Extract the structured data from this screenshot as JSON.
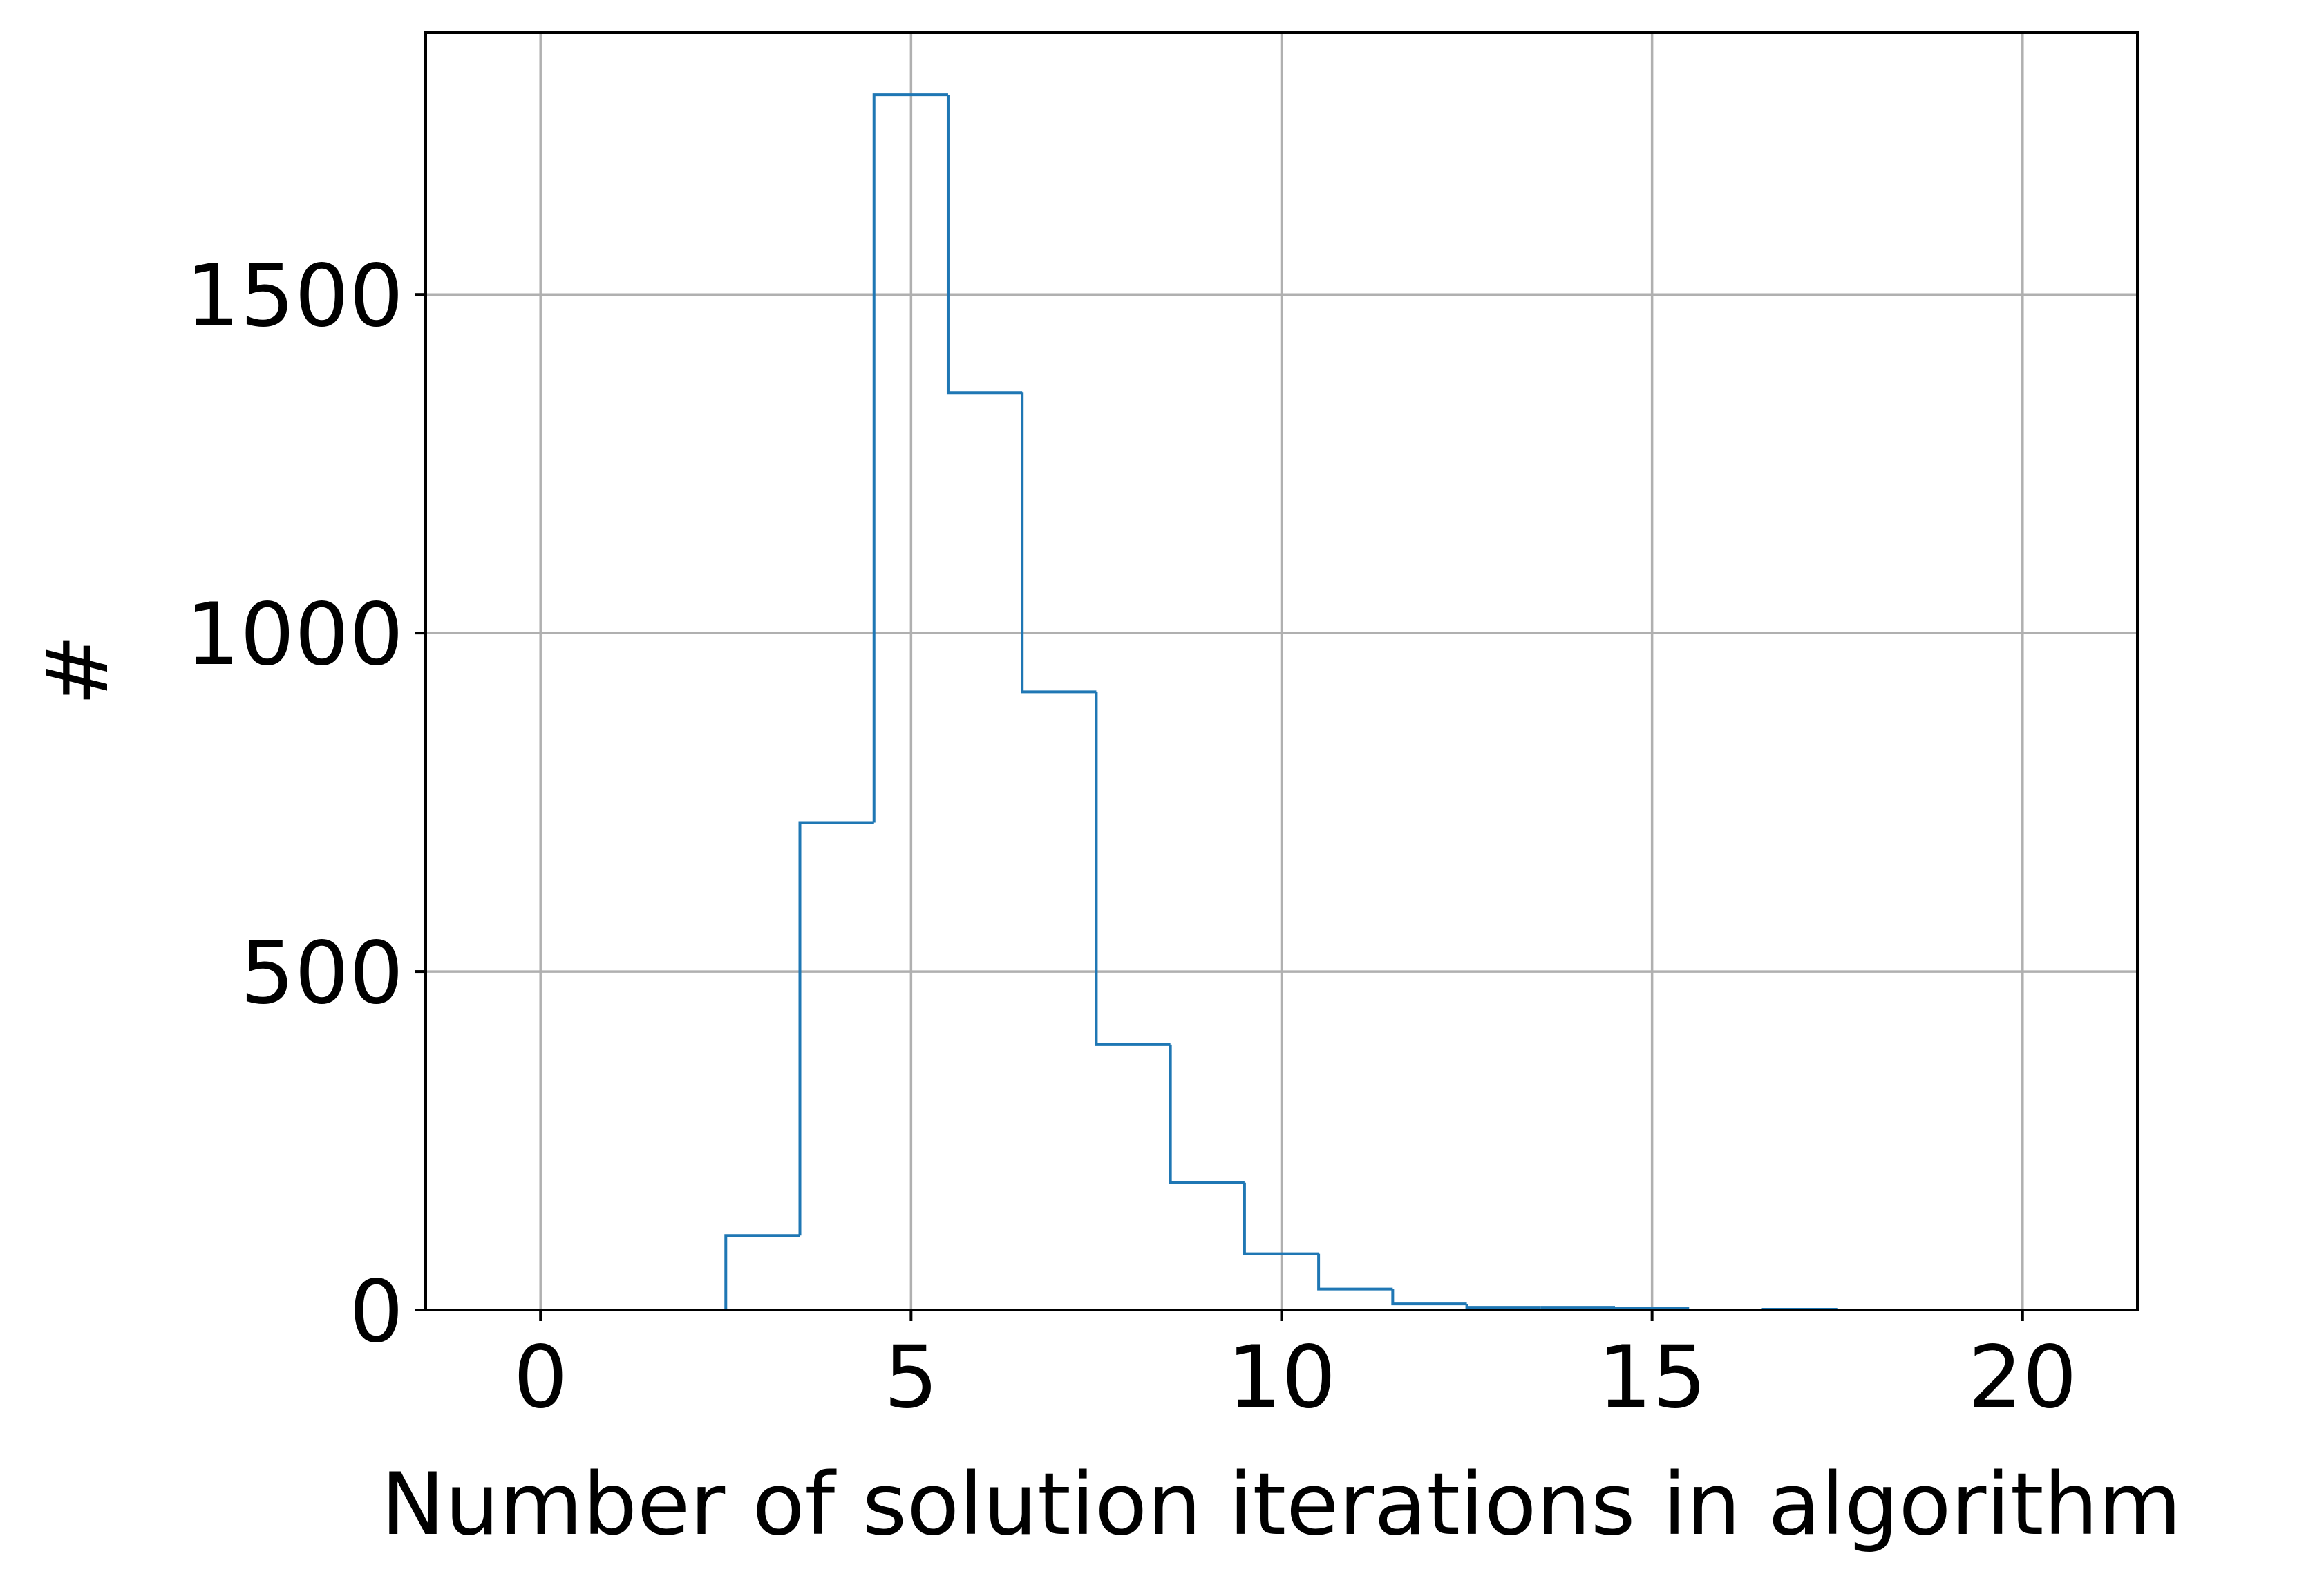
{
  "chart_data": {
    "type": "histogram",
    "xlabel": "Number of solution iterations in algorithm",
    "ylabel": "#",
    "bins": [
      -0.5,
      0.5,
      1.5,
      2.5,
      3.5,
      4.5,
      5.5,
      6.5,
      7.5,
      8.5,
      9.5,
      10.5,
      11.5,
      12.5,
      13.5,
      14.5,
      15.5,
      16.5,
      17.5,
      18.5,
      19.5,
      20.5
    ],
    "values": [
      0,
      0,
      0,
      110,
      720,
      1795,
      1355,
      913,
      392,
      188,
      83,
      31,
      9,
      4,
      4,
      2,
      0,
      1,
      0,
      0,
      0
    ],
    "color": "#1f77b4",
    "xlim": [
      -1.55,
      21.55
    ],
    "ylim": [
      0,
      1887
    ],
    "xticks": [
      0,
      5,
      10,
      15,
      20
    ],
    "yticks": [
      0,
      500,
      1000,
      1500
    ],
    "grid": true
  }
}
